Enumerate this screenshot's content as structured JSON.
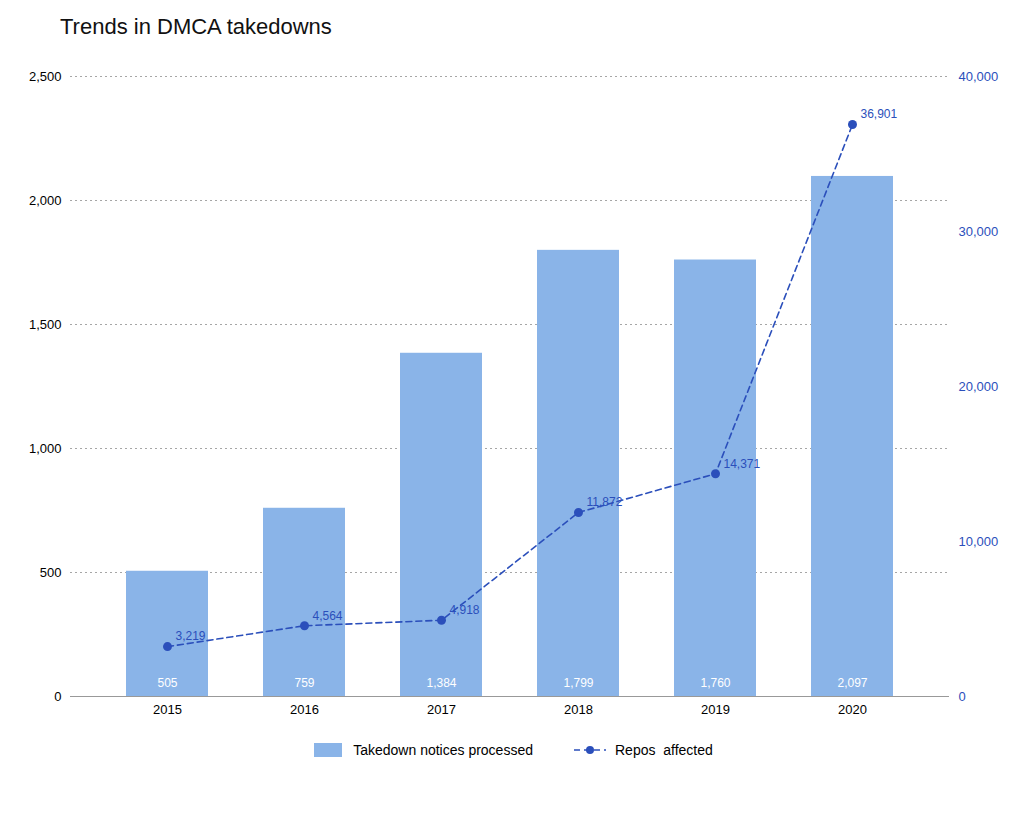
{
  "chart_data": {
    "type": "bar",
    "title": "Trends in DMCA takedowns",
    "categories": [
      "2015",
      "2016",
      "2017",
      "2018",
      "2019",
      "2020"
    ],
    "series": [
      {
        "name": "Takedown notices processed",
        "type": "bar",
        "color": "#8AB4E8",
        "values": [
          505,
          759,
          1384,
          1799,
          1760,
          2097
        ],
        "value_labels": [
          "505",
          "759",
          "1,384",
          "1,799",
          "1,760",
          "2,097"
        ]
      },
      {
        "name": "Repos  affected",
        "type": "line",
        "color": "#2B4FBB",
        "line_style": "dashed",
        "marker": "circle",
        "axis": "y2",
        "values": [
          3219,
          4564,
          4918,
          11872,
          14371,
          36901
        ],
        "value_labels": [
          "3,219",
          "4,564",
          "4,918",
          "11,872",
          "14,371",
          "36,901"
        ]
      }
    ],
    "ylim": [
      0,
      2500
    ],
    "yticks": [
      0,
      500,
      {
        "value": 1000,
        "label": "1,000"
      },
      {
        "value": 1500,
        "label": "1,500"
      },
      {
        "value": 2000,
        "label": "2,000"
      },
      {
        "value": 2500,
        "label": "2,500"
      }
    ],
    "y2lim": [
      0,
      40000
    ],
    "y2ticks": [
      0,
      {
        "value": 10000,
        "label": "10,000"
      },
      {
        "value": 20000,
        "label": "20,000"
      },
      {
        "value": 30000,
        "label": "30,000"
      },
      {
        "value": 40000,
        "label": "40,000"
      }
    ],
    "grid": true,
    "legend": "bottom",
    "data_labels": true
  }
}
